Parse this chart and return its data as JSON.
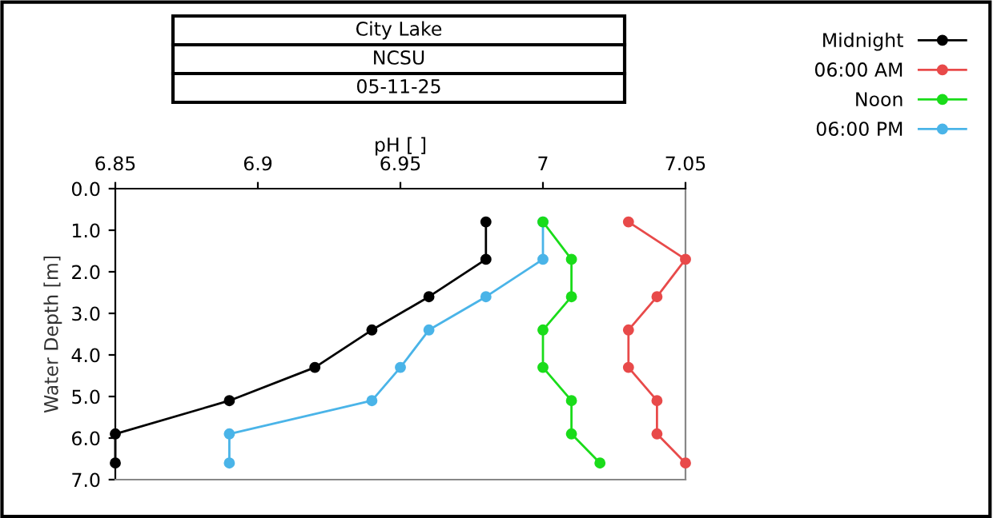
{
  "chart_data": {
    "type": "line",
    "title": "City Lake",
    "subtitle": "NCSU",
    "annotations": [
      "05-11-25"
    ],
    "xlabel": "pH [ ]",
    "ylabel": "Water Depth [m]",
    "xlim": [
      6.85,
      7.05
    ],
    "xticks": [
      6.85,
      6.9,
      6.95,
      7,
      7.05
    ],
    "ylim": [
      7,
      0
    ],
    "yticks": [
      {
        "value": 0,
        "label": "0.0"
      },
      {
        "value": 1,
        "label": "1.0"
      },
      {
        "value": 2,
        "label": "2.0"
      },
      {
        "value": 3,
        "label": "3.0"
      },
      {
        "value": 4,
        "label": "4.0"
      },
      {
        "value": 5,
        "label": "5.0"
      },
      {
        "value": 6,
        "label": "6.0"
      },
      {
        "value": 7,
        "label": "7.0"
      }
    ],
    "grid": false,
    "legend": "top right",
    "marker": "circle",
    "line_style": "solid",
    "series": [
      {
        "name": "Midnight",
        "color": "#000000",
        "x": [
          6.98,
          6.98,
          6.96,
          6.94,
          6.92,
          6.89,
          6.85,
          6.85
        ],
        "values": [
          0.8,
          1.7,
          2.6,
          3.4,
          4.3,
          5.1,
          5.9,
          6.6
        ]
      },
      {
        "name": "06:00 AM",
        "color": "#e84a4a",
        "x": [
          7.03,
          7.05,
          7.04,
          7.03,
          7.03,
          7.04,
          7.04,
          7.05
        ],
        "values": [
          0.8,
          1.7,
          2.6,
          3.4,
          4.3,
          5.1,
          5.9,
          6.6
        ]
      },
      {
        "name": "Noon",
        "color": "#1adc1a",
        "x": [
          7.0,
          7.01,
          7.01,
          7.0,
          7.0,
          7.01,
          7.01,
          7.02
        ],
        "values": [
          0.8,
          1.7,
          2.6,
          3.4,
          4.3,
          5.1,
          5.9,
          6.6
        ]
      },
      {
        "name": "06:00 PM",
        "color": "#4ab4e8",
        "x": [
          7.0,
          7.0,
          6.98,
          6.96,
          6.95,
          6.94,
          6.89,
          6.89
        ],
        "values": [
          0.8,
          1.7,
          2.6,
          3.4,
          4.3,
          5.1,
          5.9,
          6.6
        ]
      }
    ]
  }
}
